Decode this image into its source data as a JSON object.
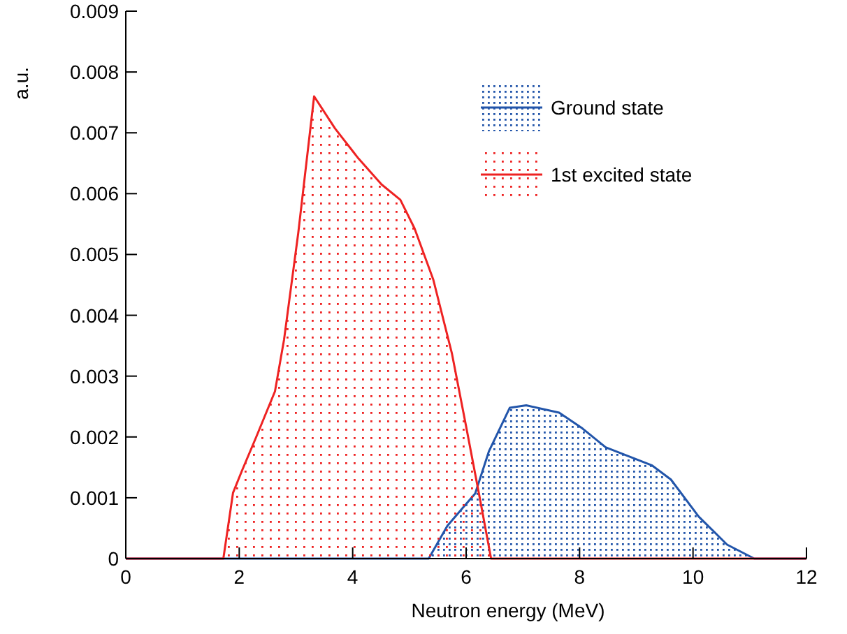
{
  "chart_data": {
    "type": "area",
    "xlabel": "Neutron energy (MeV)",
    "ylabel": "a.u.",
    "xlim": [
      0,
      12
    ],
    "xticks": [
      0,
      2,
      4,
      6,
      8,
      10,
      12
    ],
    "ylim": [
      0,
      0.009
    ],
    "yticks": [
      0,
      0.001,
      0.002,
      0.003,
      0.004,
      0.005,
      0.006,
      0.007,
      0.008,
      0.009
    ],
    "legend": "top right",
    "grid": false,
    "series": [
      {
        "name": "Ground state",
        "color": "#2255aa",
        "x": [
          0,
          5.34,
          5.67,
          5.91,
          6.16,
          6.4,
          6.77,
          7.06,
          7.64,
          8.05,
          8.46,
          8.87,
          9.28,
          9.61,
          10.1,
          10.6,
          11.08,
          12
        ],
        "values": [
          0,
          0,
          0.00054,
          0.0008,
          0.00107,
          0.00176,
          0.00248,
          0.00252,
          0.0024,
          0.00214,
          0.00183,
          0.00168,
          0.00153,
          0.0013,
          0.00069,
          0.00023,
          0,
          0
        ]
      },
      {
        "name": "1st excited state",
        "color": "#ee2222",
        "x": [
          0,
          1.72,
          1.89,
          2.05,
          2.3,
          2.63,
          2.79,
          3.04,
          3.32,
          3.69,
          4.1,
          4.51,
          4.84,
          5.09,
          5.42,
          5.75,
          5.99,
          6.24,
          6.44,
          12
        ],
        "values": [
          0,
          0,
          0.00108,
          0.00145,
          0.002,
          0.00275,
          0.0036,
          0.00535,
          0.0076,
          0.00707,
          0.00658,
          0.00615,
          0.0059,
          0.00543,
          0.00459,
          0.00337,
          0.00222,
          0.001,
          0,
          0
        ]
      }
    ]
  }
}
